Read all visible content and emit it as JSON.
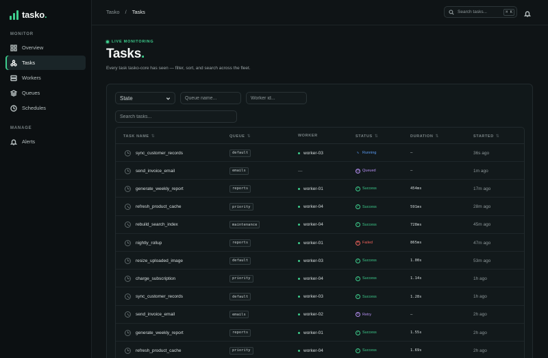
{
  "brand": {
    "name": "tasko",
    "accent": "#3ecf8e"
  },
  "sidebar": {
    "sections": [
      {
        "label": "MONITOR"
      },
      {
        "label": "MANAGE"
      }
    ],
    "items": [
      {
        "label": "Overview",
        "icon": "grid-icon"
      },
      {
        "label": "Tasks",
        "icon": "network-icon",
        "active": true
      },
      {
        "label": "Workers",
        "icon": "server-icon"
      },
      {
        "label": "Queues",
        "icon": "layers-icon"
      },
      {
        "label": "Schedules",
        "icon": "clock-icon"
      },
      {
        "label": "Alerts",
        "icon": "bell-icon"
      }
    ]
  },
  "topbar": {
    "breadcrumb": [
      "Tasko",
      "/",
      "Tasks"
    ],
    "search_placeholder": "Search tasks...",
    "shortcut": "⌘ K"
  },
  "header": {
    "live_label": "LIVE MONITORING",
    "title": "Tasks",
    "title_dot": ".",
    "subtitle": "Every task tasko-core has seen — filter, sort, and search across the fleet."
  },
  "filters": {
    "state": "State",
    "queue_placeholder": "Queue name...",
    "worker_placeholder": "Worker id...",
    "search_placeholder": "Search tasks..."
  },
  "table": {
    "columns": [
      "TASK NAME",
      "QUEUE",
      "WORKER",
      "STATUS",
      "DURATION",
      "STARTED"
    ],
    "status_colors": {
      "Running": "#5b9cf5",
      "Queued": "#b48ef0",
      "Success": "#3ecf8e",
      "Failed": "#f0625b",
      "Retry": "#b48ef0"
    },
    "rows": [
      {
        "name": "sync_customer_records",
        "queue": "default",
        "worker": "worker-03",
        "status": "Running",
        "duration": "—",
        "started": "36s ago"
      },
      {
        "name": "send_invoice_email",
        "queue": "emails",
        "worker": "—",
        "status": "Queued",
        "duration": "—",
        "started": "1m ago"
      },
      {
        "name": "generate_weekly_report",
        "queue": "reports",
        "worker": "worker-01",
        "status": "Success",
        "duration": "454ms",
        "started": "17m ago"
      },
      {
        "name": "refresh_product_cache",
        "queue": "priority",
        "worker": "worker-04",
        "status": "Success",
        "duration": "591ms",
        "started": "28m ago"
      },
      {
        "name": "rebuild_search_index",
        "queue": "maintenance",
        "worker": "worker-04",
        "status": "Success",
        "duration": "728ms",
        "started": "45m ago"
      },
      {
        "name": "nightly_rollup",
        "queue": "reports",
        "worker": "worker-01",
        "status": "Failed",
        "duration": "865ms",
        "started": "47m ago"
      },
      {
        "name": "resize_uploaded_image",
        "queue": "default",
        "worker": "worker-03",
        "status": "Success",
        "duration": "1.00s",
        "started": "53m ago"
      },
      {
        "name": "charge_subscription",
        "queue": "priority",
        "worker": "worker-04",
        "status": "Success",
        "duration": "1.14s",
        "started": "1h ago"
      },
      {
        "name": "sync_customer_records",
        "queue": "default",
        "worker": "worker-03",
        "status": "Success",
        "duration": "1.28s",
        "started": "1h ago"
      },
      {
        "name": "send_invoice_email",
        "queue": "emails",
        "worker": "worker-02",
        "status": "Retry",
        "duration": "—",
        "started": "2h ago"
      },
      {
        "name": "generate_weekly_report",
        "queue": "reports",
        "worker": "worker-01",
        "status": "Success",
        "duration": "1.55s",
        "started": "2h ago"
      },
      {
        "name": "refresh_product_cache",
        "queue": "priority",
        "worker": "worker-04",
        "status": "Success",
        "duration": "1.69s",
        "started": "2h ago"
      }
    ]
  }
}
